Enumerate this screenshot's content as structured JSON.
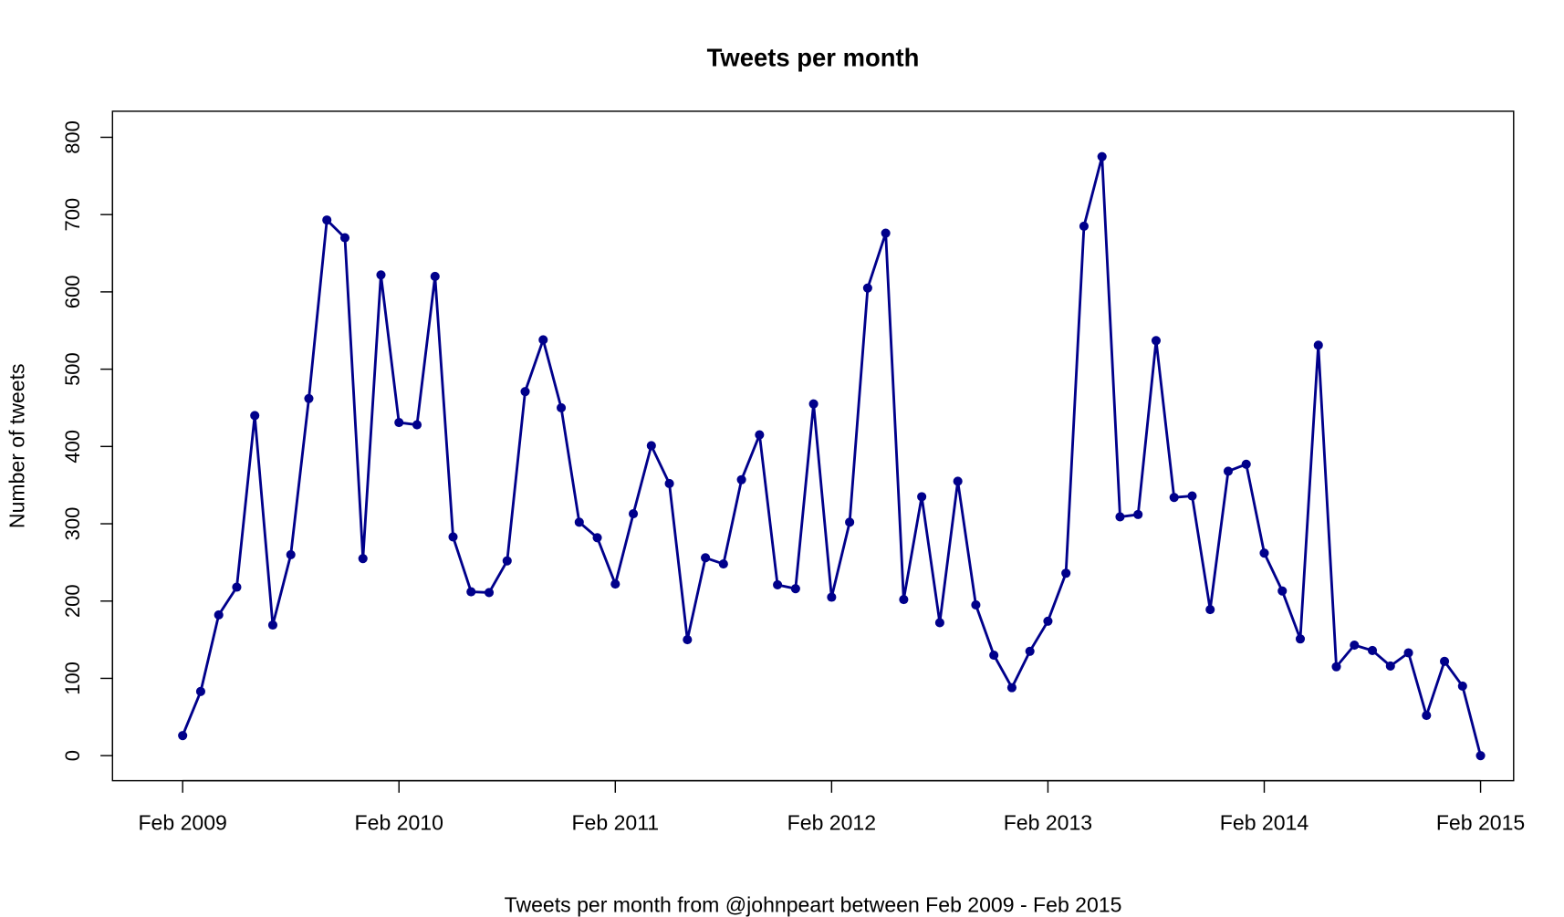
{
  "chart_data": {
    "type": "line",
    "title": "Tweets per month",
    "xlabel": "Tweets per month from @johnpeart between Feb 2009 - Feb 2015",
    "ylabel": "Number of tweets",
    "ylim": [
      0,
      800
    ],
    "yticks": [
      "0",
      "100",
      "200",
      "300",
      "400",
      "500",
      "600",
      "700",
      "800"
    ],
    "xticks": [
      "Feb 2009",
      "Feb 2010",
      "Feb 2011",
      "Feb 2012",
      "Feb 2013",
      "Feb 2014",
      "Feb 2015"
    ],
    "x_start": "Feb 2009",
    "x_end": "Feb 2015",
    "series": [
      {
        "name": "Tweets",
        "color": "#00008B",
        "values": [
          26,
          83,
          182,
          218,
          440,
          169,
          260,
          462,
          693,
          670,
          255,
          622,
          431,
          428,
          620,
          283,
          212,
          211,
          252,
          471,
          538,
          450,
          302,
          282,
          222,
          313,
          401,
          352,
          150,
          256,
          248,
          357,
          415,
          221,
          216,
          455,
          205,
          302,
          605,
          676,
          202,
          335,
          172,
          355,
          195,
          130,
          88,
          135,
          174,
          236,
          685,
          775,
          309,
          312,
          537,
          334,
          336,
          189,
          368,
          377,
          262,
          213,
          151,
          531,
          115,
          143,
          136,
          116,
          133,
          52,
          122,
          90,
          0
        ]
      }
    ]
  }
}
